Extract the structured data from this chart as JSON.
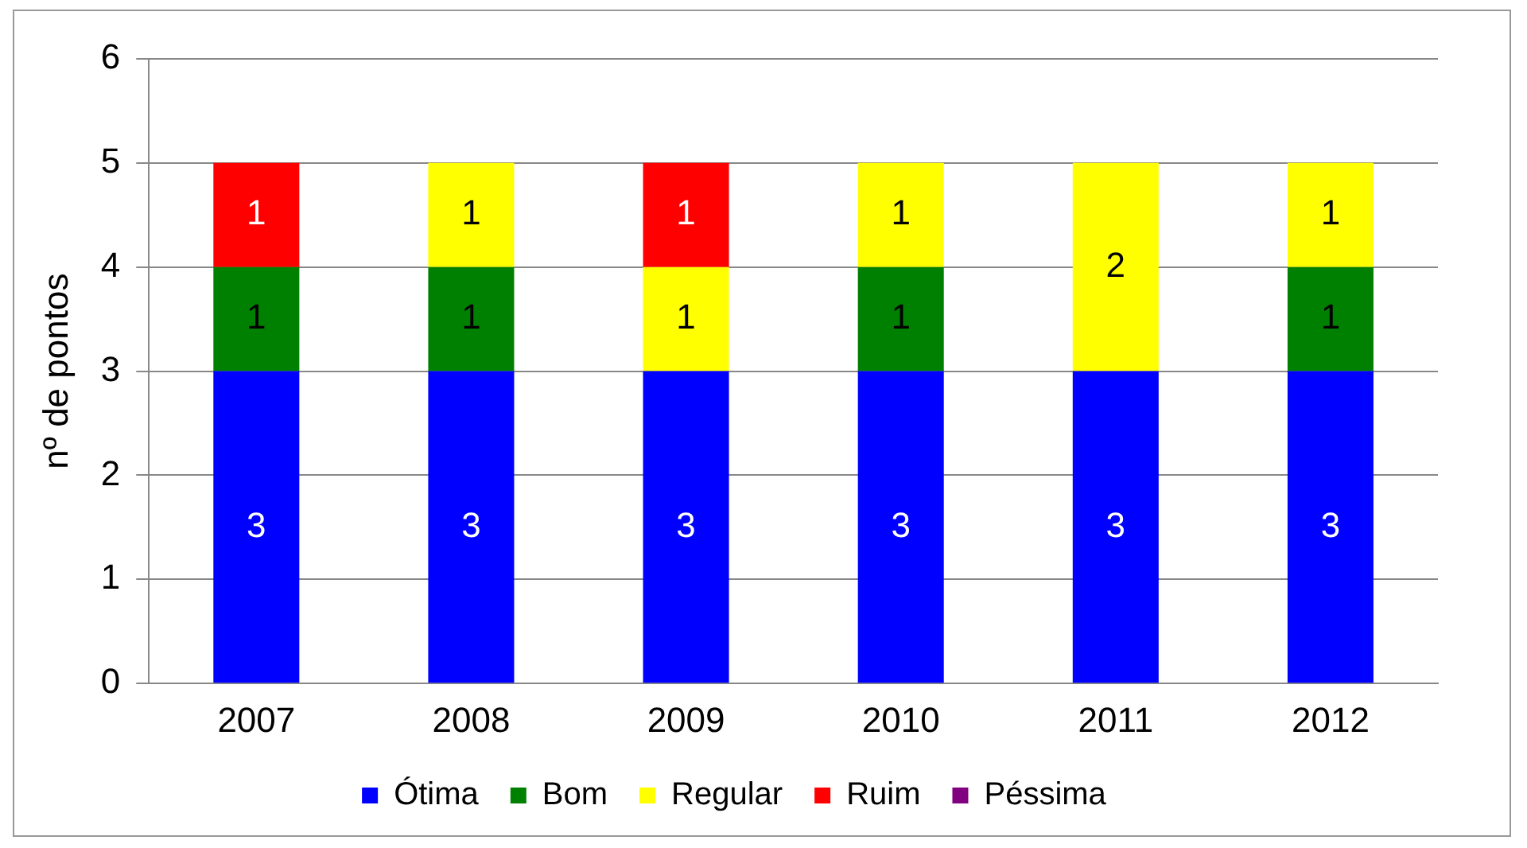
{
  "chart_data": {
    "type": "bar",
    "ylabel": "nº de pontos",
    "categories": [
      "2007",
      "2008",
      "2009",
      "2010",
      "2011",
      "2012"
    ],
    "stacked": true,
    "ylim": [
      0,
      6
    ],
    "yticks": [
      0,
      1,
      2,
      3,
      4,
      5,
      6
    ],
    "grid": "y",
    "legend": "bottom",
    "series": [
      {
        "name": "Ótima",
        "color": "#0000ff",
        "values": [
          3,
          3,
          3,
          3,
          3,
          3
        ],
        "value_labels": [
          "3",
          "3",
          "3",
          "3",
          "3",
          "3"
        ]
      },
      {
        "name": "Bom",
        "color": "#008000",
        "values": [
          1,
          1,
          0,
          1,
          0,
          1
        ],
        "value_labels": [
          "1",
          "1",
          null,
          "1",
          null,
          "1"
        ]
      },
      {
        "name": "Regular",
        "color": "#ffff00",
        "values": [
          0,
          1,
          1,
          1,
          2,
          1
        ],
        "value_labels": [
          null,
          "1",
          "1",
          "1",
          "2",
          "1"
        ]
      },
      {
        "name": "Ruim",
        "color": "#ff0000",
        "values": [
          1,
          0,
          1,
          0,
          0,
          0
        ],
        "value_labels": [
          "1",
          null,
          "1",
          null,
          null,
          null
        ]
      },
      {
        "name": "Péssima",
        "color": "#800080",
        "values": [
          0,
          0,
          0,
          0,
          0,
          0
        ],
        "value_labels": [
          null,
          null,
          null,
          null,
          null,
          null
        ]
      }
    ]
  }
}
